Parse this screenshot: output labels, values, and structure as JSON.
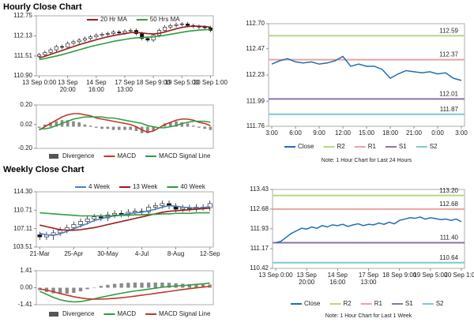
{
  "headings": [
    "Hourly Close Chart",
    "Weekly Close Chart"
  ],
  "chart_data": [
    {
      "type": "candlestick",
      "categories": [
        "13 Sep 0:00",
        null,
        null,
        null,
        null,
        "13 Sep 20:00",
        null,
        null,
        null,
        null,
        "14 Sep 16:00",
        null,
        null,
        null,
        null,
        "17 Sep 13:00",
        null,
        null,
        null,
        null,
        "18 Sep 9:00",
        null,
        null,
        null,
        null,
        "19 Sep 5:00",
        null,
        null,
        null,
        null,
        "20 Sep 1:00"
      ],
      "open": [
        111.5,
        111.55,
        111.62,
        111.7,
        111.8,
        111.78,
        111.9,
        111.95,
        112.0,
        112.05,
        112.1,
        112.15,
        112.18,
        112.2,
        112.25,
        112.22,
        112.28,
        112.3,
        112.2,
        112.05,
        112.0,
        112.15,
        112.3,
        112.4,
        112.45,
        112.48,
        112.5,
        112.45,
        112.42,
        112.4,
        112.38
      ],
      "high": [
        111.61,
        111.68,
        111.76,
        111.86,
        111.86,
        111.96,
        112.01,
        112.06,
        112.11,
        112.16,
        112.21,
        112.24,
        112.26,
        112.31,
        112.31,
        112.34,
        112.36,
        112.36,
        112.26,
        112.11,
        112.21,
        112.36,
        112.46,
        112.51,
        112.54,
        112.56,
        112.56,
        112.51,
        112.48,
        112.46,
        112.44
      ],
      "low": [
        111.44,
        111.49,
        111.56,
        111.64,
        111.72,
        111.72,
        111.84,
        111.89,
        111.94,
        111.99,
        112.04,
        112.09,
        112.12,
        112.14,
        112.16,
        112.16,
        112.22,
        112.14,
        111.99,
        111.94,
        111.94,
        112.09,
        112.24,
        112.34,
        112.39,
        112.42,
        112.39,
        112.36,
        112.34,
        112.32,
        112.24
      ],
      "close": [
        111.55,
        111.62,
        111.7,
        111.8,
        111.78,
        111.9,
        111.95,
        112.0,
        112.05,
        112.1,
        112.15,
        112.18,
        112.2,
        112.25,
        112.22,
        112.28,
        112.3,
        112.2,
        112.05,
        112.0,
        112.15,
        112.3,
        112.4,
        112.45,
        112.48,
        112.5,
        112.45,
        112.42,
        112.4,
        112.38,
        112.3
      ],
      "series": [
        {
          "name": "20 Hr MA",
          "color": "#9b1c1c",
          "values": [
            111.45,
            111.5,
            111.56,
            111.62,
            111.68,
            111.74,
            111.8,
            111.86,
            111.91,
            111.96,
            112.01,
            112.06,
            112.1,
            112.14,
            112.17,
            112.2,
            112.23,
            112.24,
            112.22,
            112.2,
            112.19,
            112.21,
            112.25,
            112.3,
            112.35,
            112.39,
            112.42,
            112.43,
            112.43,
            112.42,
            112.4
          ]
        },
        {
          "name": "50 Hrs MA",
          "color": "#2e9e3e",
          "values": [
            111.4,
            111.43,
            111.47,
            111.51,
            111.55,
            111.6,
            111.65,
            111.7,
            111.75,
            111.8,
            111.84,
            111.88,
            111.92,
            111.96,
            111.99,
            112.02,
            112.05,
            112.07,
            112.08,
            112.09,
            112.1,
            112.12,
            112.15,
            112.18,
            112.21,
            112.24,
            112.27,
            112.29,
            112.31,
            112.32,
            112.33
          ]
        }
      ],
      "ylim": [
        110.9,
        112.75
      ],
      "yticks": [
        {
          "value": 110.9,
          "label": "110.90"
        },
        111.51,
        112.13,
        112.75
      ]
    },
    {
      "type": "macd",
      "histogram": {
        "name": "Divergence",
        "color": "#8a8a8a",
        "values": [
          -0.01,
          0.02,
          0.04,
          0.05,
          0.06,
          0.06,
          0.05,
          0.04,
          0.02,
          0.01,
          -0.01,
          -0.02,
          -0.02,
          -0.03,
          -0.03,
          -0.03,
          -0.03,
          -0.04,
          -0.06,
          -0.06,
          -0.04,
          0.0,
          0.03,
          0.04,
          0.05,
          0.04,
          0.03,
          0.01,
          -0.01,
          -0.02,
          -0.03
        ]
      },
      "series": [
        {
          "name": "MACD",
          "color": "#c0392b",
          "values": [
            -0.03,
            0.0,
            0.03,
            0.06,
            0.09,
            0.11,
            0.12,
            0.12,
            0.11,
            0.1,
            0.08,
            0.07,
            0.06,
            0.05,
            0.04,
            0.03,
            0.02,
            0.0,
            -0.03,
            -0.05,
            -0.04,
            -0.01,
            0.02,
            0.04,
            0.06,
            0.07,
            0.07,
            0.06,
            0.04,
            0.03,
            0.01
          ]
        },
        {
          "name": "MACD Signal Line",
          "color": "#2e9e3e",
          "values": [
            -0.02,
            -0.02,
            -0.01,
            0.01,
            0.03,
            0.05,
            0.07,
            0.08,
            0.09,
            0.09,
            0.09,
            0.09,
            0.08,
            0.08,
            0.07,
            0.06,
            0.05,
            0.04,
            0.03,
            0.01,
            0.0,
            -0.01,
            -0.01,
            0.0,
            0.01,
            0.03,
            0.04,
            0.05,
            0.05,
            0.05,
            0.04
          ]
        }
      ],
      "ylim": [
        -0.2,
        0.2
      ],
      "yticks": [
        {
          "value": -0.2,
          "label": "-0.20"
        },
        0.02,
        {
          "value": 0.2,
          "label": "0.20"
        }
      ]
    },
    {
      "type": "line",
      "categories": [
        "3:00",
        null,
        null,
        "6:00",
        null,
        null,
        "9:00",
        null,
        null,
        "12:00",
        null,
        null,
        "15:00",
        null,
        null,
        "18:00",
        null,
        null,
        "21:00",
        null,
        null,
        "0:00",
        null,
        null,
        "3:00"
      ],
      "series": [
        {
          "name": "Close",
          "color": "#1f6fb2",
          "values": [
            112.33,
            112.36,
            112.38,
            112.35,
            112.34,
            112.35,
            112.33,
            112.34,
            112.36,
            112.4,
            112.31,
            112.33,
            112.31,
            112.31,
            112.28,
            112.2,
            112.24,
            112.27,
            112.26,
            112.25,
            112.26,
            112.24,
            112.25,
            112.2,
            112.18
          ]
        }
      ],
      "levels": [
        {
          "name": "R2",
          "color": "#b7d68c",
          "value": 112.59
        },
        {
          "name": "R1",
          "color": "#e8a3a3",
          "value": 112.37
        },
        {
          "name": "S1",
          "color": "#8e70aa",
          "value": 112.01
        },
        {
          "name": "S2",
          "color": "#7cc7da",
          "value": 111.87
        }
      ],
      "note": "Note: 1 Hour Chart for Last 24 Hours",
      "ylim": [
        111.76,
        112.7
      ],
      "yticks": [
        111.76,
        111.99,
        112.23,
        112.47,
        {
          "value": 112.7,
          "label": "112.70"
        }
      ]
    },
    {
      "type": "candlestick",
      "categories": [
        "21-Mar",
        null,
        null,
        null,
        null,
        "25-Apr",
        null,
        null,
        null,
        null,
        "30-May",
        null,
        null,
        null,
        null,
        "4-Jul",
        null,
        null,
        null,
        null,
        "8-Aug",
        null,
        null,
        null,
        null,
        "12-Sep"
      ],
      "open": [
        105.9,
        105.5,
        105.9,
        106.3,
        106.8,
        107.3,
        107.9,
        108.5,
        109.0,
        109.4,
        109.2,
        109.8,
        110.1,
        109.9,
        110.3,
        110.5,
        110.4,
        111.3,
        111.6,
        112.0,
        111.5,
        110.9,
        111.2,
        111.0,
        111.3,
        111.2
      ],
      "high": [
        106.5,
        106.5,
        106.9,
        107.4,
        107.9,
        108.5,
        109.1,
        109.6,
        110.0,
        110.0,
        110.4,
        110.7,
        110.7,
        110.9,
        111.1,
        111.1,
        111.9,
        112.2,
        112.6,
        112.6,
        112.1,
        111.8,
        111.8,
        111.9,
        111.9,
        112.6
      ],
      "low": [
        104.9,
        104.9,
        104.9,
        105.7,
        106.2,
        106.7,
        107.3,
        107.9,
        108.4,
        108.6,
        108.6,
        109.2,
        109.3,
        109.3,
        109.7,
        109.8,
        109.8,
        110.7,
        111.0,
        110.9,
        110.3,
        110.3,
        110.4,
        110.4,
        110.6,
        110.6
      ],
      "close": [
        105.5,
        105.9,
        106.3,
        106.8,
        107.3,
        107.9,
        108.5,
        109.0,
        109.4,
        109.2,
        109.8,
        110.1,
        109.9,
        110.3,
        110.5,
        110.4,
        111.3,
        111.6,
        112.0,
        111.5,
        110.9,
        111.2,
        111.0,
        111.3,
        111.2,
        112.0
      ],
      "series": [
        {
          "name": "4 Week",
          "color": "#4a7fc1",
          "values": [
            106.2,
            105.9,
            105.8,
            106.1,
            106.6,
            107.1,
            107.6,
            108.1,
            108.7,
            109.0,
            109.4,
            109.6,
            109.8,
            110.0,
            110.2,
            110.3,
            110.6,
            110.9,
            111.3,
            111.6,
            111.5,
            111.3,
            111.2,
            111.1,
            111.2,
            111.4
          ]
        },
        {
          "name": "13 Week",
          "color": "#9b1c1c",
          "values": [
            107.8,
            107.5,
            107.2,
            106.9,
            106.8,
            106.8,
            106.9,
            107.1,
            107.3,
            107.6,
            107.9,
            108.2,
            108.5,
            108.8,
            109.1,
            109.4,
            109.7,
            110.0,
            110.3,
            110.5,
            110.6,
            110.7,
            110.8,
            110.9,
            111.0,
            111.1
          ]
        },
        {
          "name": "40 Week",
          "color": "#2e9e3e",
          "values": [
            110.2,
            110.1,
            110.0,
            109.9,
            109.8,
            109.7,
            109.6,
            109.6,
            109.6,
            109.6,
            109.6,
            109.6,
            109.7,
            109.7,
            109.8,
            109.8,
            109.9,
            109.9,
            110.0,
            110.0,
            110.1,
            110.1,
            110.1,
            110.2,
            110.2,
            110.2
          ]
        }
      ],
      "ylim": [
        103.51,
        114.3
      ],
      "yticks": [
        103.51,
        107.11,
        110.71,
        {
          "value": 114.3,
          "label": "114.30"
        }
      ]
    },
    {
      "type": "macd",
      "histogram": {
        "name": "Divergence",
        "color": "#8a8a8a",
        "values": [
          -0.2,
          -0.35,
          -0.47,
          -0.52,
          -0.5,
          -0.43,
          -0.3,
          -0.13,
          0.03,
          0.15,
          0.24,
          0.32,
          0.37,
          0.41,
          0.43,
          0.42,
          0.43,
          0.43,
          0.43,
          0.41,
          0.37,
          0.33,
          0.3,
          0.29,
          0.27,
          0.27
        ]
      },
      "series": [
        {
          "name": "MACD",
          "color": "#2e9e3e",
          "values": [
            -0.3,
            -0.55,
            -0.8,
            -1.0,
            -1.12,
            -1.18,
            -1.15,
            -1.05,
            -0.92,
            -0.8,
            -0.68,
            -0.56,
            -0.46,
            -0.36,
            -0.27,
            -0.2,
            -0.12,
            -0.04,
            0.04,
            0.1,
            0.14,
            0.18,
            0.22,
            0.28,
            0.32,
            0.38
          ]
        },
        {
          "name": "MACD Signal Line",
          "color": "#c0392b",
          "values": [
            -0.1,
            -0.2,
            -0.33,
            -0.48,
            -0.62,
            -0.75,
            -0.85,
            -0.92,
            -0.95,
            -0.95,
            -0.92,
            -0.88,
            -0.83,
            -0.77,
            -0.7,
            -0.62,
            -0.55,
            -0.47,
            -0.39,
            -0.31,
            -0.23,
            -0.15,
            -0.08,
            -0.01,
            0.05,
            0.11
          ]
        }
      ],
      "ylim": [
        -1.41,
        1.41
      ],
      "yticks": [
        -1.41,
        {
          "value": 0,
          "label": "0.00"
        },
        1.41
      ]
    },
    {
      "type": "line",
      "categories": [
        "13 Sep 0:00",
        null,
        null,
        null,
        null,
        null,
        "13 Sep 20:00",
        null,
        null,
        null,
        null,
        null,
        "14 Sep 16:00",
        null,
        null,
        null,
        null,
        null,
        "17 Sep 13:00",
        null,
        null,
        null,
        null,
        null,
        "18 Sep 9:00",
        null,
        null,
        null,
        null,
        null,
        "19 Sep 5:00",
        null,
        null,
        null,
        null,
        null,
        "20 Sep 1:00"
      ],
      "series": [
        {
          "name": "Close",
          "color": "#1f6fb2",
          "values": [
            111.4,
            111.45,
            111.6,
            111.75,
            111.85,
            111.95,
            111.92,
            112.0,
            111.95,
            112.05,
            112.0,
            112.08,
            112.05,
            112.1,
            112.02,
            112.08,
            112.12,
            112.05,
            112.1,
            112.08,
            112.15,
            112.1,
            112.18,
            112.12,
            112.25,
            112.3,
            112.35,
            112.33,
            112.38,
            112.3,
            112.35,
            112.32,
            112.28,
            112.3,
            112.25,
            112.3,
            112.2
          ]
        }
      ],
      "levels": [
        {
          "name": "R2",
          "color": "#b7d68c",
          "value": 113.2
        },
        {
          "name": "R1",
          "color": "#e8a3a3",
          "value": 112.68
        },
        {
          "name": "S1",
          "color": "#8e70aa",
          "value": 111.4
        },
        {
          "name": "S2",
          "color": "#7cc7da",
          "value": 110.64
        }
      ],
      "value_labels": [
        "113.20",
        "112.68",
        "111.40",
        "110.64"
      ],
      "note": "Note: 1 Hour Chart for Last 1 Week",
      "ylim": [
        110.42,
        113.43
      ],
      "yticks": [
        110.42,
        111.17,
        111.93,
        112.68,
        113.43
      ]
    }
  ]
}
